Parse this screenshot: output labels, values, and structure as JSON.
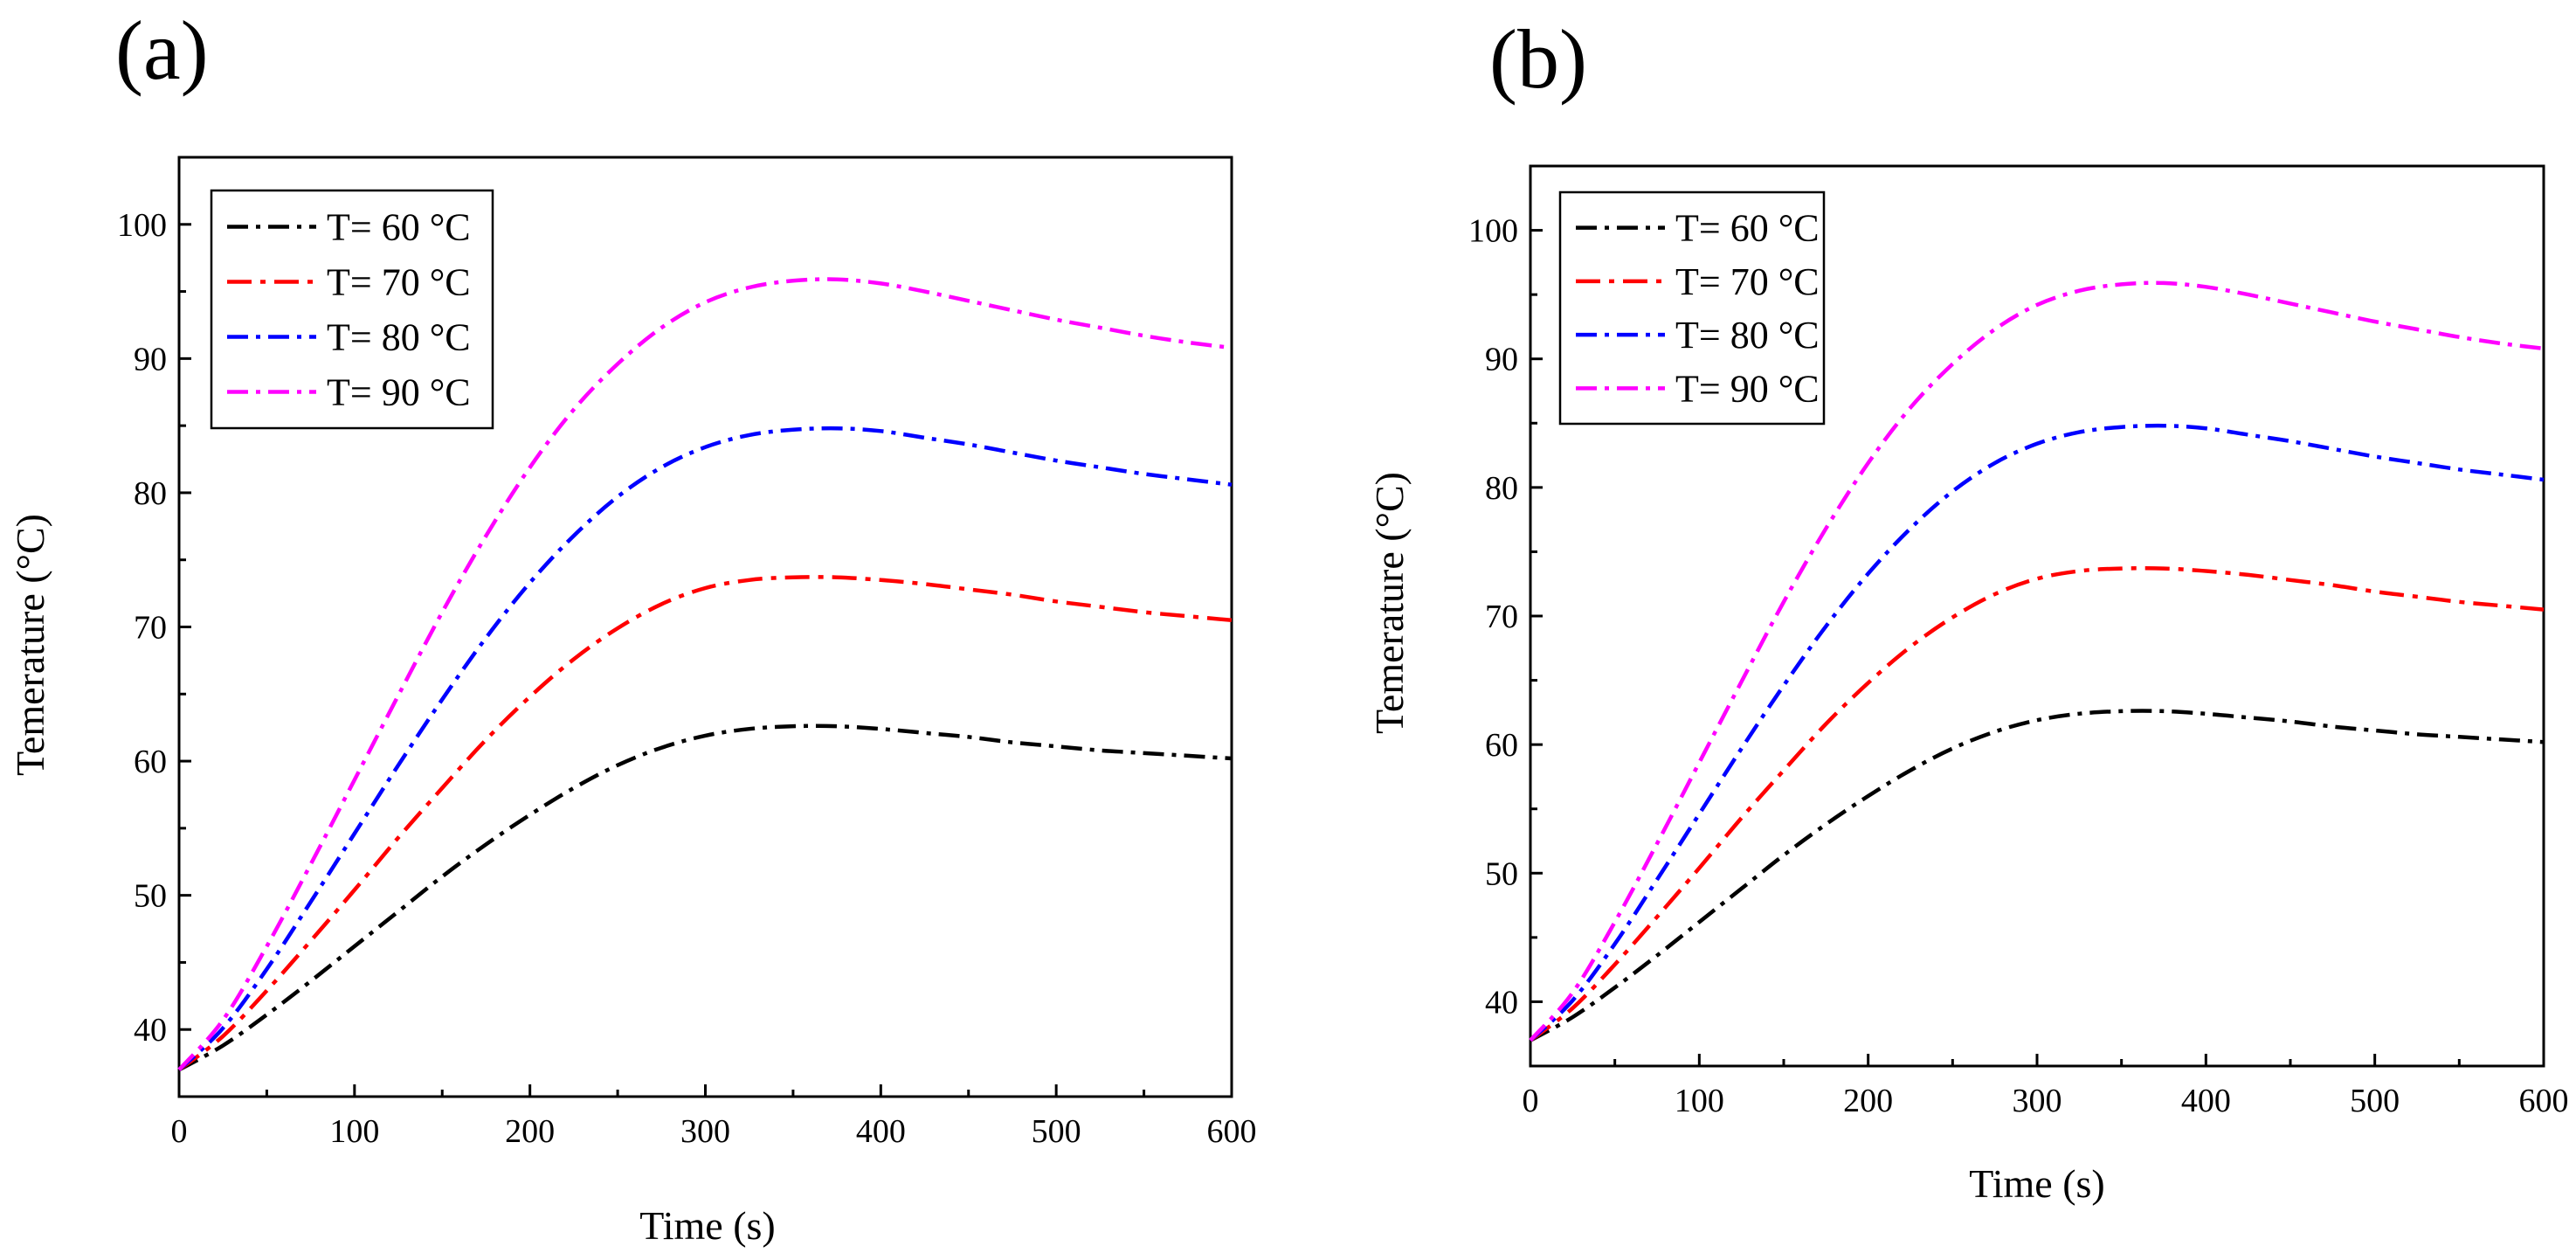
{
  "chart_data": [
    {
      "panel_label": "(a)",
      "type": "line",
      "xlabel": "Time (s)",
      "ylabel": "Temerature (°C)",
      "xlim": [
        0,
        600
      ],
      "ylim": [
        35,
        105
      ],
      "xticks": [
        0,
        100,
        200,
        300,
        400,
        500,
        600
      ],
      "yticks": [
        40,
        50,
        60,
        70,
        80,
        90,
        100
      ],
      "grid": false,
      "legend_position": "top-left",
      "x": [
        0,
        25,
        50,
        75,
        100,
        125,
        150,
        175,
        200,
        225,
        250,
        275,
        300,
        325,
        350,
        375,
        400,
        425,
        450,
        475,
        500,
        525,
        550,
        575,
        600
      ],
      "series": [
        {
          "name": "T= 60 °C",
          "color": "#000000",
          "values": [
            37.0,
            38.8,
            41.1,
            43.6,
            46.2,
            48.8,
            51.4,
            53.8,
            56.0,
            58.0,
            59.7,
            61.0,
            61.9,
            62.4,
            62.6,
            62.6,
            62.4,
            62.1,
            61.8,
            61.4,
            61.1,
            60.8,
            60.6,
            60.4,
            60.2
          ]
        },
        {
          "name": "T= 70 °C",
          "color": "#ff0000",
          "values": [
            37.0,
            39.5,
            42.9,
            46.6,
            50.4,
            54.3,
            58.0,
            61.6,
            64.8,
            67.6,
            69.9,
            71.7,
            72.9,
            73.5,
            73.7,
            73.7,
            73.5,
            73.2,
            72.8,
            72.4,
            71.9,
            71.5,
            71.1,
            70.8,
            70.5
          ]
        },
        {
          "name": "T= 80 °C",
          "color": "#0000ff",
          "values": [
            37.0,
            40.1,
            44.5,
            49.5,
            54.6,
            59.7,
            64.6,
            69.2,
            73.3,
            76.8,
            79.7,
            81.9,
            83.4,
            84.3,
            84.7,
            84.8,
            84.6,
            84.1,
            83.6,
            83.0,
            82.4,
            81.9,
            81.4,
            81.0,
            80.6
          ]
        },
        {
          "name": "T= 90 °C",
          "color": "#ff00ff",
          "values": [
            37.0,
            40.7,
            46.2,
            52.3,
            58.6,
            64.9,
            71.1,
            76.8,
            81.9,
            86.2,
            89.6,
            92.3,
            94.2,
            95.3,
            95.8,
            95.9,
            95.6,
            95.0,
            94.3,
            93.6,
            92.9,
            92.3,
            91.7,
            91.2,
            90.8
          ]
        }
      ]
    },
    {
      "panel_label": "(b)",
      "type": "line",
      "xlabel": "Time (s)",
      "ylabel": "Temerature (°C)",
      "xlim": [
        0,
        600
      ],
      "ylim": [
        35,
        105
      ],
      "xticks": [
        0,
        100,
        200,
        300,
        400,
        500,
        600
      ],
      "yticks": [
        40,
        50,
        60,
        70,
        80,
        90,
        100
      ],
      "grid": false,
      "legend_position": "top-left",
      "x": [
        0,
        25,
        50,
        75,
        100,
        125,
        150,
        175,
        200,
        225,
        250,
        275,
        300,
        325,
        350,
        375,
        400,
        425,
        450,
        475,
        500,
        525,
        550,
        575,
        600
      ],
      "series": [
        {
          "name": "T= 60 °C",
          "color": "#000000",
          "values": [
            37.0,
            38.8,
            41.1,
            43.6,
            46.2,
            48.8,
            51.4,
            53.8,
            56.0,
            58.0,
            59.7,
            61.0,
            61.9,
            62.4,
            62.6,
            62.6,
            62.4,
            62.1,
            61.8,
            61.4,
            61.1,
            60.8,
            60.6,
            60.4,
            60.2
          ]
        },
        {
          "name": "T= 70 °C",
          "color": "#ff0000",
          "values": [
            37.0,
            39.5,
            42.9,
            46.6,
            50.4,
            54.3,
            58.0,
            61.6,
            64.8,
            67.6,
            69.9,
            71.7,
            72.9,
            73.5,
            73.7,
            73.7,
            73.5,
            73.2,
            72.8,
            72.4,
            71.9,
            71.5,
            71.1,
            70.8,
            70.5
          ]
        },
        {
          "name": "T= 80 °C",
          "color": "#0000ff",
          "values": [
            37.0,
            40.1,
            44.5,
            49.5,
            54.6,
            59.7,
            64.6,
            69.2,
            73.3,
            76.8,
            79.7,
            81.9,
            83.4,
            84.3,
            84.7,
            84.8,
            84.6,
            84.1,
            83.6,
            83.0,
            82.4,
            81.9,
            81.4,
            81.0,
            80.6
          ]
        },
        {
          "name": "T= 90 °C",
          "color": "#ff00ff",
          "values": [
            37.0,
            40.7,
            46.2,
            52.3,
            58.6,
            64.9,
            71.1,
            76.8,
            81.9,
            86.2,
            89.6,
            92.3,
            94.2,
            95.3,
            95.8,
            95.9,
            95.6,
            95.0,
            94.3,
            93.6,
            92.9,
            92.3,
            91.7,
            91.2,
            90.8
          ]
        }
      ]
    }
  ]
}
